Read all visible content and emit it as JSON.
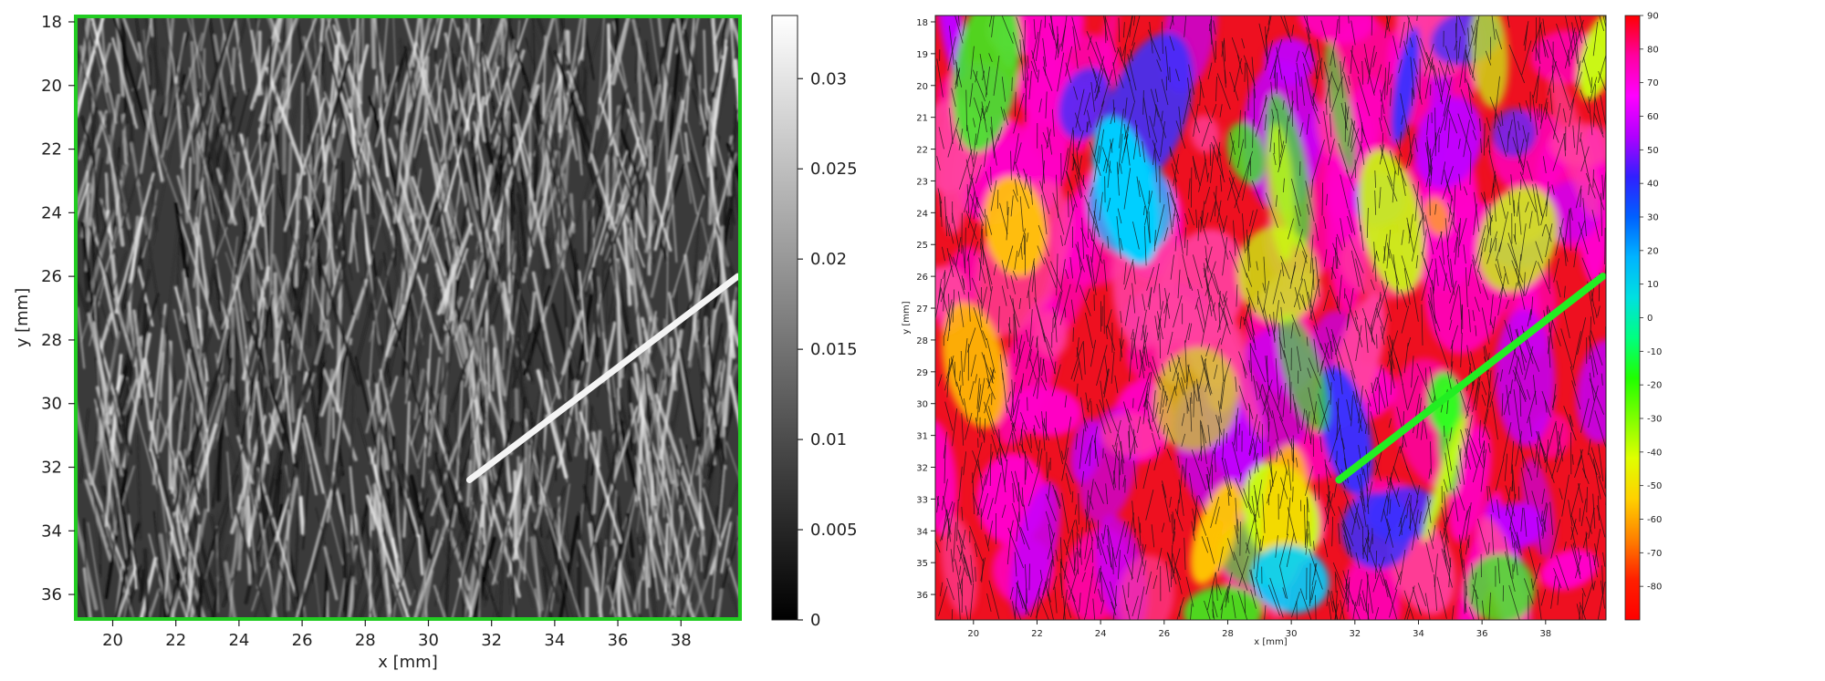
{
  "chart_data": [
    {
      "type": "heatmap",
      "title": "",
      "xlabel": "x [mm]",
      "ylabel": "y [mm]",
      "xlim": [
        18.8,
        39.9
      ],
      "ylim": [
        36.8,
        17.8
      ],
      "xticks": [
        20,
        22,
        24,
        26,
        28,
        30,
        32,
        34,
        36,
        38
      ],
      "yticks": [
        18,
        20,
        22,
        24,
        26,
        28,
        30,
        32,
        34,
        36
      ],
      "colorbar": {
        "colormap": "gray",
        "range": [
          0,
          0.0335
        ],
        "ticks": [
          "0",
          "0.005",
          "0.01",
          "0.015",
          "0.02",
          "0.025",
          "0.03"
        ],
        "tick_values": [
          0,
          0.005,
          0.01,
          0.015,
          0.02,
          0.025,
          0.03
        ]
      },
      "border_color": "#22cc22",
      "features": {
        "dominant_orientation": "streaks running from upper-left to lower-right (steep)",
        "bright_line": {
          "from": [
            31.3,
            32.4
          ],
          "to": [
            39.8,
            26.0
          ]
        }
      }
    },
    {
      "type": "heatmap",
      "title": "",
      "xlabel": "x [mm]",
      "ylabel": "y [mm]",
      "xlim": [
        18.8,
        39.9
      ],
      "ylim": [
        36.8,
        17.8
      ],
      "xticks": [
        20,
        22,
        24,
        26,
        28,
        30,
        32,
        34,
        36,
        38
      ],
      "yticks": [
        18,
        19,
        20,
        21,
        22,
        23,
        24,
        25,
        26,
        27,
        28,
        29,
        30,
        31,
        32,
        33,
        34,
        35,
        36
      ],
      "colorbar": {
        "colormap": "hsv-orientation",
        "range": [
          -90,
          90
        ],
        "ticks": [
          "90",
          "80",
          "70",
          "60",
          "50",
          "40",
          "30",
          "20",
          "10",
          "0",
          "-10",
          "-20",
          "-30",
          "-40",
          "-50",
          "-60",
          "-70",
          "-80"
        ],
        "tick_values": [
          90,
          80,
          70,
          60,
          50,
          40,
          30,
          20,
          10,
          0,
          -10,
          -20,
          -30,
          -40,
          -50,
          -60,
          -70,
          -80
        ],
        "colors": [
          "#ff0000",
          "#ff00a0",
          "#ff00ff",
          "#b000ff",
          "#3020ff",
          "#0060ff",
          "#00b4ff",
          "#00e0e0",
          "#00ff80",
          "#20ff00",
          "#80ff00",
          "#e0ff00",
          "#ffd000",
          "#ff8000",
          "#ff2000",
          "#ff0000"
        ]
      },
      "features": {
        "dominant_color": "red / magenta",
        "overlay": "black fiber-direction line segments",
        "bright_line": {
          "from": [
            31.5,
            32.4
          ],
          "to": [
            39.8,
            26.0
          ]
        }
      }
    }
  ]
}
